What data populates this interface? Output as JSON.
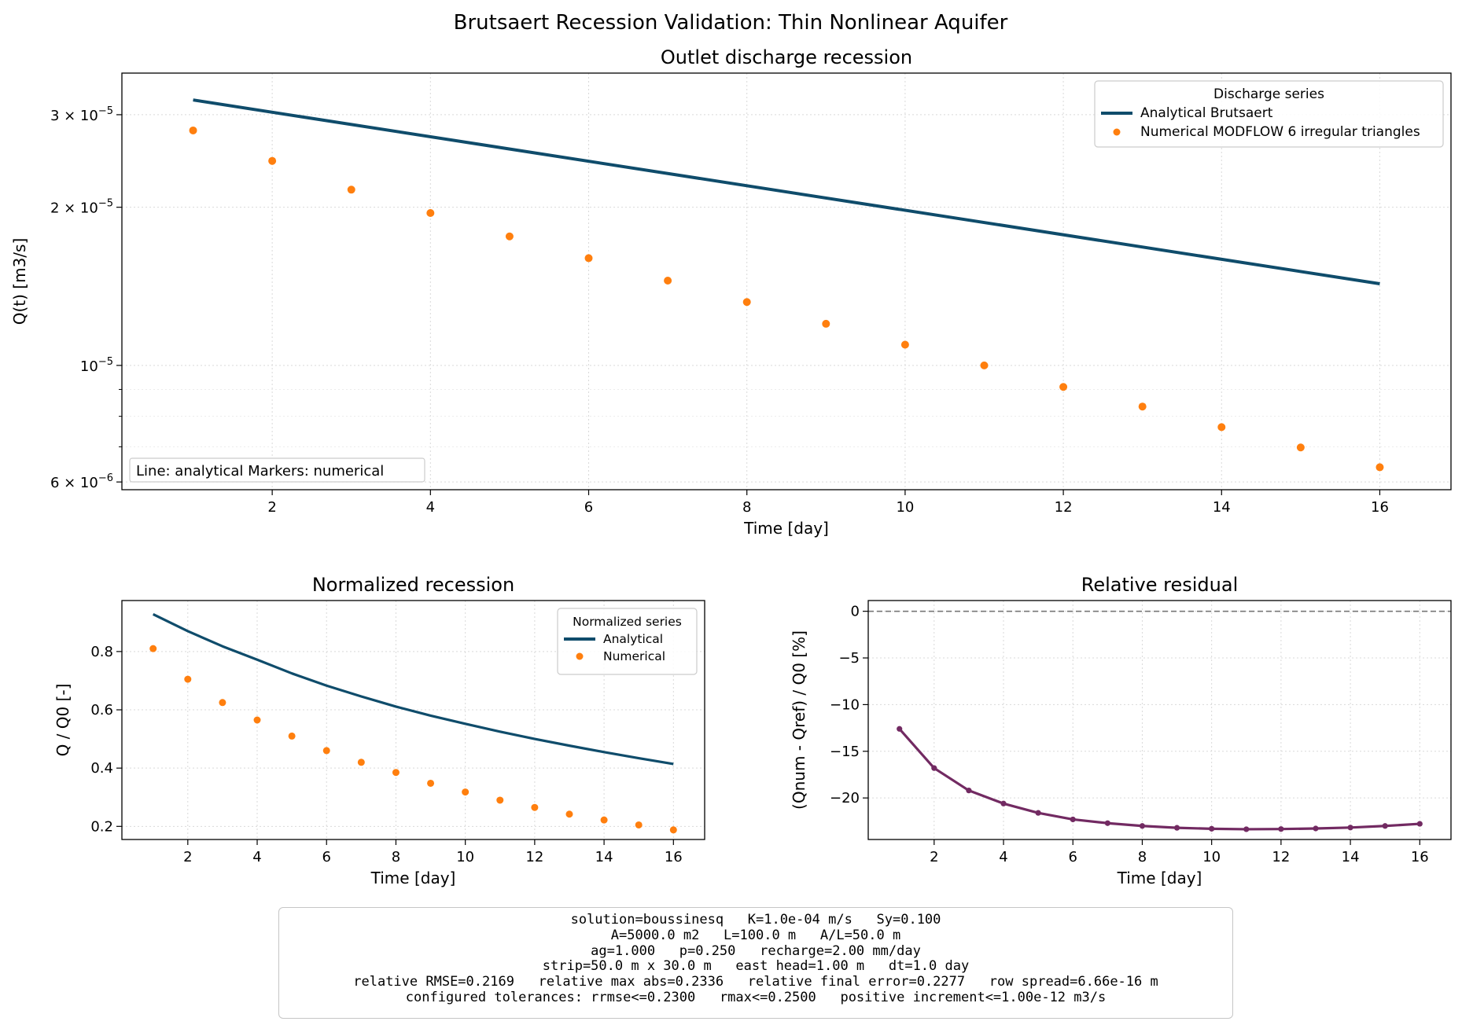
{
  "figure": {
    "suptitle": "Brutsaert Recession Validation: Thin Nonlinear Aquifer"
  },
  "chart_data": [
    {
      "type": "line",
      "title": "Outlet discharge recession",
      "xlabel": "Time [day]",
      "ylabel": "Q(t) [m3/s]",
      "yscale": "log",
      "xlim": [
        0.1,
        16.9
      ],
      "ylim": [
        5.8e-06,
        3.6e-05
      ],
      "x_ticks": [
        2,
        4,
        6,
        8,
        10,
        12,
        14,
        16
      ],
      "y_ticks": [
        {
          "value": 3e-05,
          "mantissa": "3",
          "exp": "−5"
        },
        {
          "value": 2e-05,
          "mantissa": "2",
          "exp": "−5"
        },
        {
          "value": 1e-05,
          "mantissa": "",
          "exp": "−5"
        },
        {
          "value": 6e-06,
          "mantissa": "6",
          "exp": "−6"
        }
      ],
      "grid": true,
      "legend": {
        "title": "Discharge series",
        "position": "top-right"
      },
      "annotation": "Line: analytical   Markers: numerical",
      "series": [
        {
          "name": "Analytical Brutsaert",
          "kind": "line",
          "color": "#0f4c6b",
          "x": [
            1,
            16
          ],
          "y": [
            3.2e-05,
            1.43e-05
          ]
        },
        {
          "name": "Numerical MODFLOW 6 irregular triangles",
          "kind": "scatter",
          "color": "#ff7f0e",
          "x": [
            1,
            2,
            3,
            4,
            5,
            6,
            7,
            8,
            9,
            10,
            11,
            12,
            13,
            14,
            15,
            16
          ],
          "y": [
            2.8e-05,
            2.45e-05,
            2.16e-05,
            1.95e-05,
            1.76e-05,
            1.6e-05,
            1.45e-05,
            1.32e-05,
            1.2e-05,
            1.095e-05,
            1e-05,
            9.1e-06,
            8.35e-06,
            7.63e-06,
            6.98e-06,
            6.4e-06
          ]
        }
      ]
    },
    {
      "type": "line",
      "title": "Normalized recession",
      "xlabel": "Time [day]",
      "ylabel": "Q / Q0 [-]",
      "xlim": [
        0.1,
        16.9
      ],
      "ylim": [
        0.155,
        0.975
      ],
      "x_ticks": [
        2,
        4,
        6,
        8,
        10,
        12,
        14,
        16
      ],
      "y_ticks": [
        0.2,
        0.4,
        0.6,
        0.8
      ],
      "grid": true,
      "legend": {
        "title": "Normalized series",
        "position": "top-right"
      },
      "series": [
        {
          "name": "Analytical",
          "kind": "line",
          "color": "#0f4c6b",
          "x": [
            1,
            2,
            3,
            4,
            5,
            6,
            7,
            8,
            9,
            10,
            11,
            12,
            13,
            14,
            15,
            16
          ],
          "y": [
            0.928,
            0.87,
            0.818,
            0.772,
            0.725,
            0.683,
            0.646,
            0.611,
            0.58,
            0.552,
            0.525,
            0.5,
            0.477,
            0.455,
            0.434,
            0.414
          ]
        },
        {
          "name": "Numerical",
          "kind": "scatter",
          "color": "#ff7f0e",
          "x": [
            1,
            2,
            3,
            4,
            5,
            6,
            7,
            8,
            9,
            10,
            11,
            12,
            13,
            14,
            15,
            16
          ],
          "y": [
            0.81,
            0.705,
            0.625,
            0.565,
            0.51,
            0.46,
            0.42,
            0.385,
            0.348,
            0.318,
            0.29,
            0.265,
            0.242,
            0.222,
            0.205,
            0.188
          ]
        }
      ]
    },
    {
      "type": "line",
      "title": "Relative residual",
      "xlabel": "Time [day]",
      "ylabel": "(Qnum - Qref) / Q0 [%]",
      "xlim": [
        0.1,
        16.9
      ],
      "ylim": [
        -24.45,
        1.15
      ],
      "x_ticks": [
        2,
        4,
        6,
        8,
        10,
        12,
        14,
        16
      ],
      "y_ticks": [
        0,
        -5,
        -10,
        -15,
        -20
      ],
      "grid": true,
      "reference_line": 0,
      "series": [
        {
          "kind": "line-markers",
          "color": "#722a62",
          "x": [
            1,
            2,
            3,
            4,
            5,
            6,
            7,
            8,
            9,
            10,
            11,
            12,
            13,
            14,
            15,
            16
          ],
          "y": [
            -12.6,
            -16.8,
            -19.2,
            -20.6,
            -21.6,
            -22.3,
            -22.7,
            -23.0,
            -23.2,
            -23.3,
            -23.35,
            -23.33,
            -23.27,
            -23.17,
            -23.0,
            -22.77
          ]
        }
      ]
    }
  ],
  "info_lines": [
    "solution=boussinesq   K=1.0e-04 m/s   Sy=0.100",
    "A=5000.0 m2   L=100.0 m   A/L=50.0 m",
    "ag=1.000   p=0.250   recharge=2.00 mm/day",
    "strip=50.0 m x 30.0 m   east head=1.00 m   dt=1.0 day",
    "relative RMSE=0.2169   relative max abs=0.2336   relative final error=0.2277   row spread=6.66e-16 m",
    "configured tolerances: rrmse<=0.2300   rmax<=0.2500   positive increment<=1.00e-12 m3/s"
  ]
}
